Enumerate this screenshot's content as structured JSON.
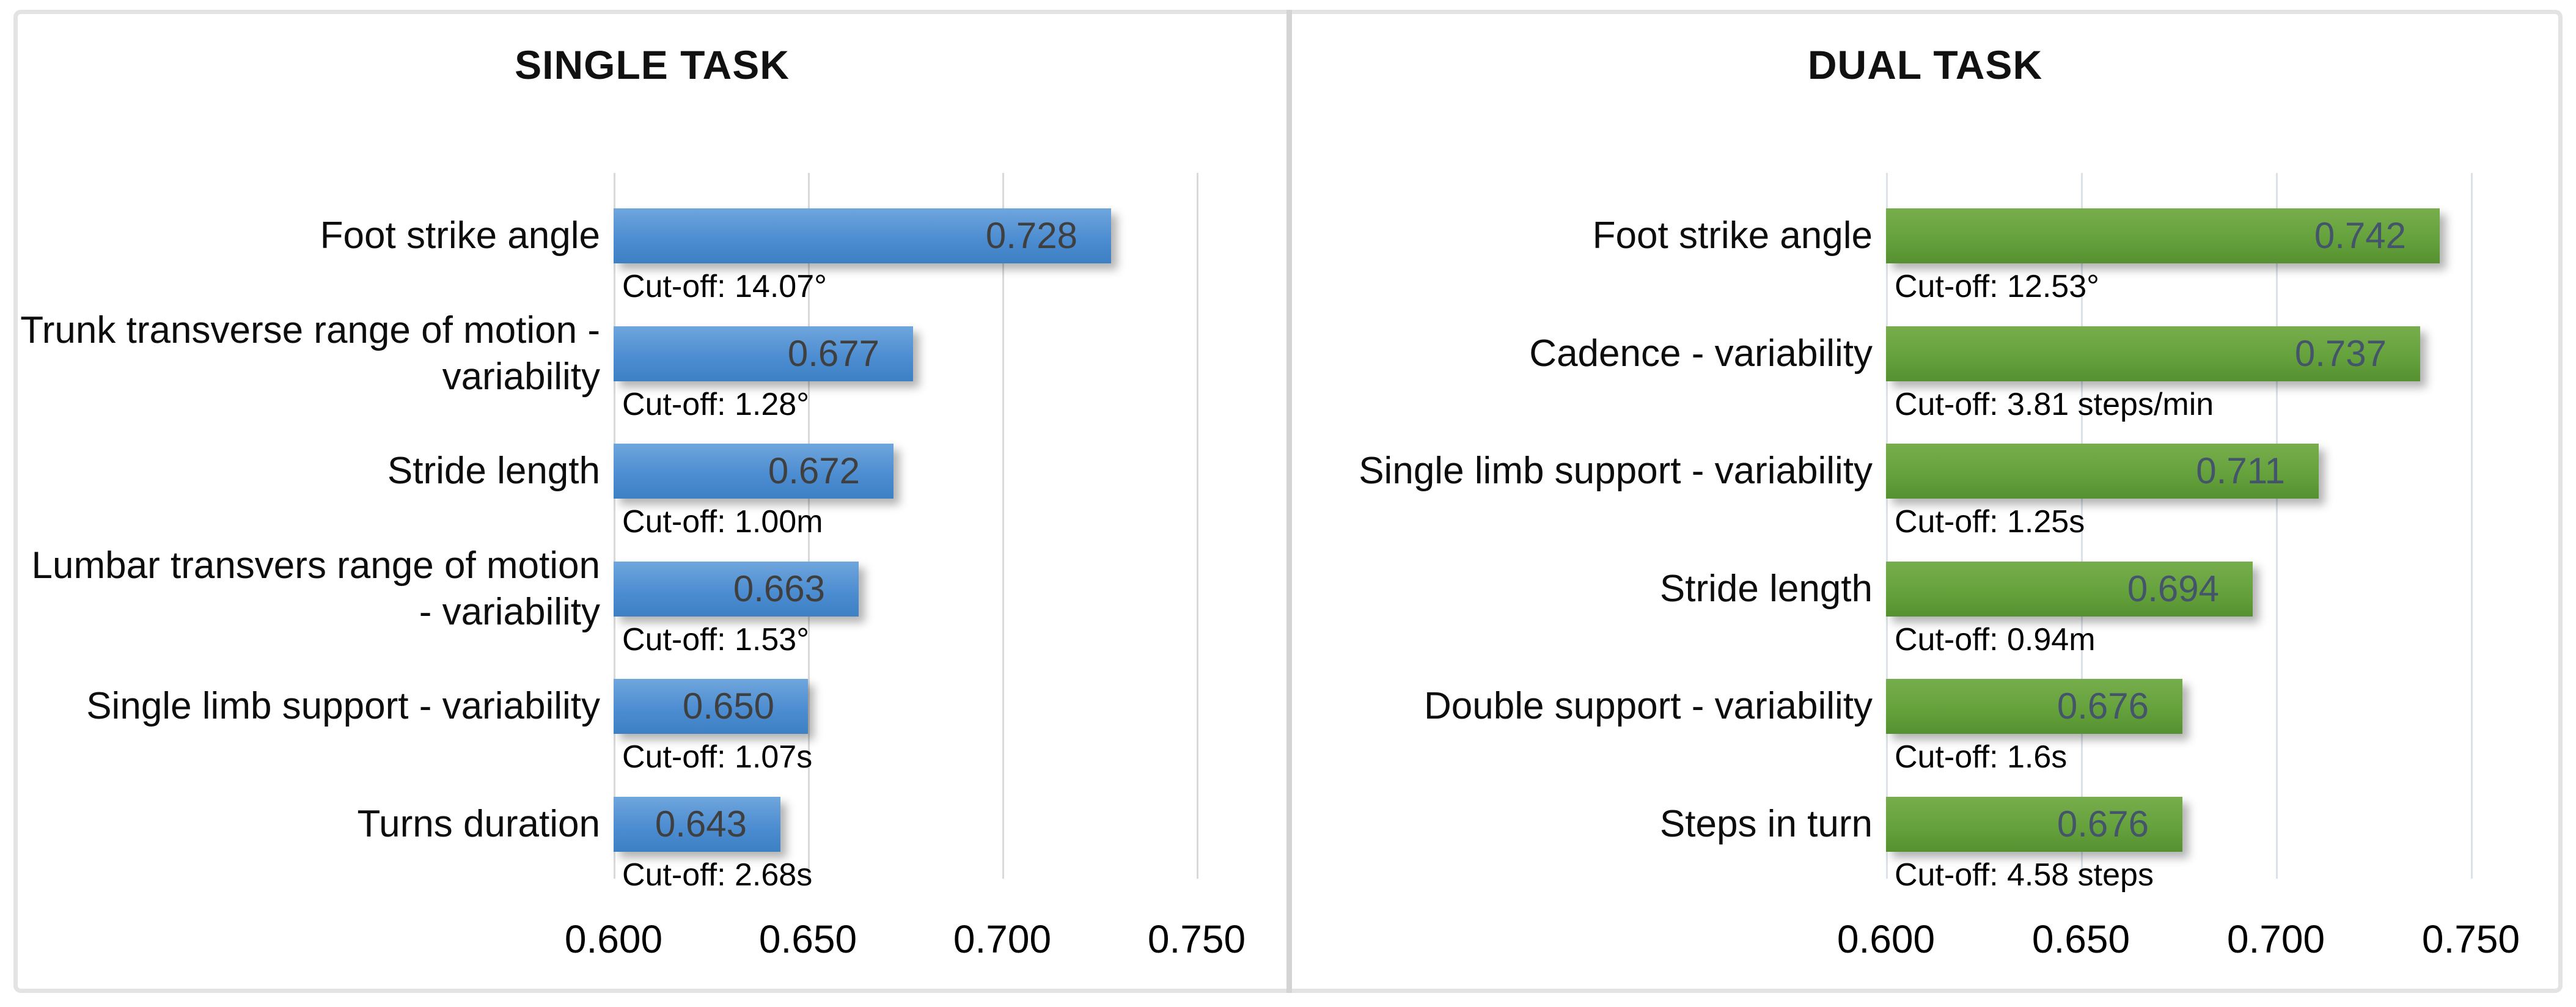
{
  "figure": {
    "description": "Two horizontal bar charts comparing AUC values of gait parameters with cut-off annotations",
    "background_color": "#ffffff",
    "frame_border_color": "#e3e3e3",
    "panel_divider_color": "#d4d4d4"
  },
  "chart_data": [
    {
      "type": "bar",
      "orientation": "horizontal",
      "title": "SINGLE TASK",
      "legend": "none",
      "grid": "vertical-gridlines-on",
      "bar_color": "#4d8dd1",
      "bar_gradient_top": "#6fa6dd",
      "bar_gradient_mid": "#4d8dd1",
      "bar_gradient_bottom": "#3d80c4",
      "value_label_color": "#3f3f3f",
      "gridline_color": "#d9d9d9",
      "xlim": [
        0.6,
        0.765
      ],
      "x_tick_values": [
        0.6,
        0.65,
        0.7,
        0.75
      ],
      "x_tick_labels": [
        "0.600",
        "0.650",
        "0.700",
        "0.750"
      ],
      "items": [
        {
          "label": "Foot strike angle",
          "value": 0.728,
          "value_label": "0.728",
          "cutoff": "Cut-off: 14.07°"
        },
        {
          "label": "Trunk transverse range of motion - variability",
          "value": 0.677,
          "value_label": "0.677",
          "cutoff": "Cut-off: 1.28°"
        },
        {
          "label": "Stride length",
          "value": 0.672,
          "value_label": "0.672",
          "cutoff": "Cut-off: 1.00m"
        },
        {
          "label": "Lumbar transvers range of motion - variability",
          "value": 0.663,
          "value_label": "0.663",
          "cutoff": "Cut-off: 1.53°"
        },
        {
          "label": "Single limb support - variability",
          "value": 0.65,
          "value_label": "0.650",
          "cutoff": "Cut-off: 1.07s"
        },
        {
          "label": "Turns duration",
          "value": 0.643,
          "value_label": "0.643",
          "cutoff": "Cut-off: 2.68s"
        }
      ]
    },
    {
      "type": "bar",
      "orientation": "horizontal",
      "title": "DUAL TASK",
      "legend": "none",
      "grid": "vertical-gridlines-on",
      "bar_color": "#65a23c",
      "bar_gradient_top": "#77ad4c",
      "bar_gradient_mid": "#65a23c",
      "bar_gradient_bottom": "#569030",
      "value_label_color": "#44546a",
      "gridline_color": "#dbe2ea",
      "xlim": [
        0.6,
        0.765
      ],
      "x_tick_values": [
        0.6,
        0.65,
        0.7,
        0.75
      ],
      "x_tick_labels": [
        "0.600",
        "0.650",
        "0.700",
        "0.750"
      ],
      "items": [
        {
          "label": "Foot strike angle",
          "value": 0.742,
          "value_label": "0.742",
          "cutoff": "Cut-off: 12.53°"
        },
        {
          "label": "Cadence - variability",
          "value": 0.737,
          "value_label": "0.737",
          "cutoff": "Cut-off: 3.81 steps/min"
        },
        {
          "label": "Single limb support - variability",
          "value": 0.711,
          "value_label": "0.711",
          "cutoff": "Cut-off: 1.25s"
        },
        {
          "label": "Stride length",
          "value": 0.694,
          "value_label": "0.694",
          "cutoff": "Cut-off: 0.94m"
        },
        {
          "label": "Double support - variability",
          "value": 0.676,
          "value_label": "0.676",
          "cutoff": "Cut-off: 1.6s"
        },
        {
          "label": "Steps in turn",
          "value": 0.676,
          "value_label": "0.676",
          "cutoff": "Cut-off: 4.58 steps"
        }
      ]
    }
  ]
}
